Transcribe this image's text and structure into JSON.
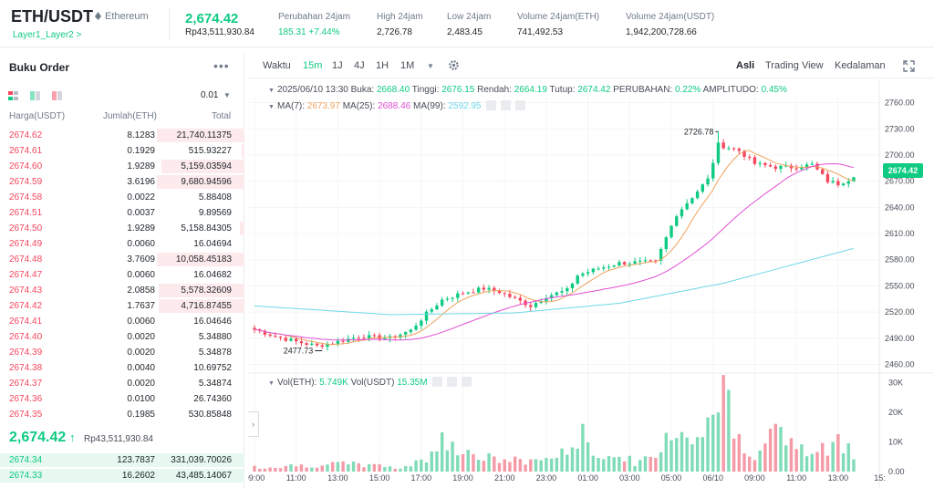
{
  "ticker": {
    "symbol": "ETH/USDT",
    "name": "Ethereum",
    "tag": "Layer1_Layer2 >",
    "last_price": "2,674.42",
    "last_price_idr": "Rp43,511,930.84",
    "stats": [
      {
        "label": "Perubahan 24jam",
        "value": "185.31 +7.44%",
        "color": "#0ecb81"
      },
      {
        "label": "High 24jam",
        "value": "2,726.78",
        "color": "#1e2329"
      },
      {
        "label": "Low 24jam",
        "value": "2,483.45",
        "color": "#1e2329"
      },
      {
        "label": "Volume 24jam(ETH)",
        "value": "741,492.53",
        "color": "#1e2329"
      },
      {
        "label": "Volume 24jam(USDT)",
        "value": "1,942,200,728.66",
        "color": "#1e2329"
      }
    ]
  },
  "orderbook": {
    "title": "Buku Order",
    "more_icon": "more-dots-icon",
    "precision": "0.01",
    "headers": {
      "price": "Harga(USDT)",
      "amount": "Jumlah(ETH)",
      "total": "Total"
    },
    "asks": [
      {
        "price": "2674.62",
        "amount": "8.1283",
        "total": "21,740.11375",
        "depth": 0.36
      },
      {
        "price": "2674.61",
        "amount": "0.1929",
        "total": "515.93227",
        "depth": 0.01
      },
      {
        "price": "2674.60",
        "amount": "1.9289",
        "total": "5,159.03594",
        "depth": 0.34
      },
      {
        "price": "2674.59",
        "amount": "3.6196",
        "total": "9,680.94596",
        "depth": 0.36
      },
      {
        "price": "2674.58",
        "amount": "0.0022",
        "total": "5.88408",
        "depth": 0.0
      },
      {
        "price": "2674.51",
        "amount": "0.0037",
        "total": "9.89569",
        "depth": 0.0
      },
      {
        "price": "2674.50",
        "amount": "1.9289",
        "total": "5,158.84305",
        "depth": 0.02
      },
      {
        "price": "2674.49",
        "amount": "0.0060",
        "total": "16.04694",
        "depth": 0.0
      },
      {
        "price": "2674.48",
        "amount": "3.7609",
        "total": "10,058.45183",
        "depth": 0.36
      },
      {
        "price": "2674.47",
        "amount": "0.0060",
        "total": "16.04682",
        "depth": 0.0
      },
      {
        "price": "2674.43",
        "amount": "2.0858",
        "total": "5,578.32609",
        "depth": 0.35
      },
      {
        "price": "2674.42",
        "amount": "1.7637",
        "total": "4,716.87455",
        "depth": 0.35
      },
      {
        "price": "2674.41",
        "amount": "0.0060",
        "total": "16.04646",
        "depth": 0.0
      },
      {
        "price": "2674.40",
        "amount": "0.0020",
        "total": "5.34880",
        "depth": 0.0
      },
      {
        "price": "2674.39",
        "amount": "0.0020",
        "total": "5.34878",
        "depth": 0.0
      },
      {
        "price": "2674.38",
        "amount": "0.0040",
        "total": "10.69752",
        "depth": 0.0
      },
      {
        "price": "2674.37",
        "amount": "0.0020",
        "total": "5.34874",
        "depth": 0.0
      },
      {
        "price": "2674.36",
        "amount": "0.0100",
        "total": "26.74360",
        "depth": 0.0
      },
      {
        "price": "2674.35",
        "amount": "0.1985",
        "total": "530.85848",
        "depth": 0.0
      }
    ],
    "mid_price": "2,674.42",
    "mid_arrow": "↑",
    "mid_price_idr": "Rp43,511,930.84",
    "bids": [
      {
        "price": "2674.34",
        "amount": "123.7837",
        "total": "331,039.70026",
        "depth": 1.0
      },
      {
        "price": "2674.33",
        "amount": "16.2602",
        "total": "43,485.14067",
        "depth": 1.0
      }
    ]
  },
  "toolbar": {
    "time_label": "Waktu",
    "intervals": [
      "15m",
      "1J",
      "4J",
      "1H",
      "1M"
    ],
    "active_interval": "15m",
    "views": [
      "Asli",
      "Trading View",
      "Kedalaman"
    ],
    "active_view": "Asli",
    "settings_icon": "gear-icon",
    "expand_icon": "expand-icon"
  },
  "chart_info": {
    "date": "2025/06/10 13:30",
    "open_label": "Buka:",
    "open": "2668.40",
    "high_label": "Tinggi:",
    "high": "2676.15",
    "low_label": "Rendah:",
    "low": "2664.19",
    "close_label": "Tutup:",
    "close": "2674.42",
    "change_label": "PERUBAHAN:",
    "change": "0.22%",
    "amp_label": "AMPLITUDO:",
    "amp": "0.45%",
    "ma7_label": "MA(7):",
    "ma7": "2673.97",
    "ma25_label": "MA(25):",
    "ma25": "2688.46",
    "ma99_label": "MA(99):",
    "ma99": "2592.95",
    "vol_eth_label": "Vol(ETH):",
    "vol_eth": "5.749K",
    "vol_usdt_label": "Vol(USDT)",
    "vol_usdt": "15.35M",
    "current_price_tag": "2674.42"
  },
  "chart_data": {
    "type": "candlestick",
    "price_ticks": [
      2760,
      2730,
      2700,
      2670,
      2640,
      2610,
      2580,
      2550,
      2520,
      2490,
      2460
    ],
    "price_tick_labels": [
      "2760.00",
      "2730.00",
      "2700.00",
      "2670.00",
      "2640.00",
      "2610.00",
      "2580.00",
      "2550.00",
      "2520.00",
      "2490.00",
      "2460.00"
    ],
    "ylim": [
      2450,
      2770
    ],
    "volume_ticks": [
      30000,
      20000,
      10000,
      0
    ],
    "volume_tick_labels": [
      "30K",
      "20K",
      "10K",
      "0.00"
    ],
    "vlim": [
      0,
      32000
    ],
    "time_labels": [
      "09:00",
      "11:00",
      "13:00",
      "15:00",
      "17:00",
      "19:00",
      "21:00",
      "23:00",
      "01:00",
      "03:00",
      "05:00",
      "06/10",
      "09:00",
      "11:00",
      "13:00",
      "15:"
    ],
    "time_label_index": [
      0,
      8,
      16,
      24,
      32,
      40,
      48,
      56,
      64,
      72,
      80,
      88,
      96,
      104,
      112,
      120
    ],
    "high_marker": "2726.78",
    "low_marker": "2477.73",
    "candle_count": 116,
    "anchors": [
      [
        0,
        2500
      ],
      [
        4,
        2492
      ],
      [
        8,
        2486
      ],
      [
        12,
        2481
      ],
      [
        16,
        2486
      ],
      [
        20,
        2492
      ],
      [
        26,
        2490
      ],
      [
        30,
        2499
      ],
      [
        33,
        2518
      ],
      [
        36,
        2534
      ],
      [
        40,
        2542
      ],
      [
        44,
        2547
      ],
      [
        47,
        2543
      ],
      [
        50,
        2535
      ],
      [
        53,
        2527
      ],
      [
        56,
        2538
      ],
      [
        60,
        2545
      ],
      [
        62,
        2562
      ],
      [
        66,
        2570
      ],
      [
        70,
        2576
      ],
      [
        74,
        2577
      ],
      [
        77,
        2577
      ],
      [
        79,
        2605
      ],
      [
        81,
        2632
      ],
      [
        84,
        2652
      ],
      [
        87,
        2672
      ],
      [
        89,
        2712
      ],
      [
        93,
        2705
      ],
      [
        96,
        2690
      ],
      [
        100,
        2686
      ],
      [
        104,
        2686
      ],
      [
        107,
        2689
      ],
      [
        110,
        2670
      ],
      [
        112,
        2667
      ],
      [
        115,
        2674.42
      ]
    ],
    "ma99_anchors": [
      [
        0,
        2527
      ],
      [
        26,
        2517
      ],
      [
        50,
        2519
      ],
      [
        70,
        2530
      ],
      [
        90,
        2553
      ],
      [
        115,
        2592.95
      ]
    ],
    "volume_anchors": [
      [
        0,
        1500
      ],
      [
        10,
        2200
      ],
      [
        20,
        2500
      ],
      [
        28,
        1200
      ],
      [
        34,
        5000
      ],
      [
        36,
        14500
      ],
      [
        40,
        6500
      ],
      [
        46,
        4000
      ],
      [
        52,
        3500
      ],
      [
        56,
        4500
      ],
      [
        60,
        6000
      ],
      [
        62,
        13000
      ],
      [
        66,
        6000
      ],
      [
        70,
        4500
      ],
      [
        74,
        3000
      ],
      [
        78,
        6000
      ],
      [
        80,
        16000
      ],
      [
        82,
        13000
      ],
      [
        86,
        14000
      ],
      [
        88,
        22000
      ],
      [
        90,
        29500
      ],
      [
        92,
        12000
      ],
      [
        96,
        7000
      ],
      [
        100,
        13000
      ],
      [
        104,
        8500
      ],
      [
        106,
        6000
      ],
      [
        110,
        7000
      ],
      [
        113,
        11000
      ],
      [
        115,
        5749
      ]
    ]
  }
}
